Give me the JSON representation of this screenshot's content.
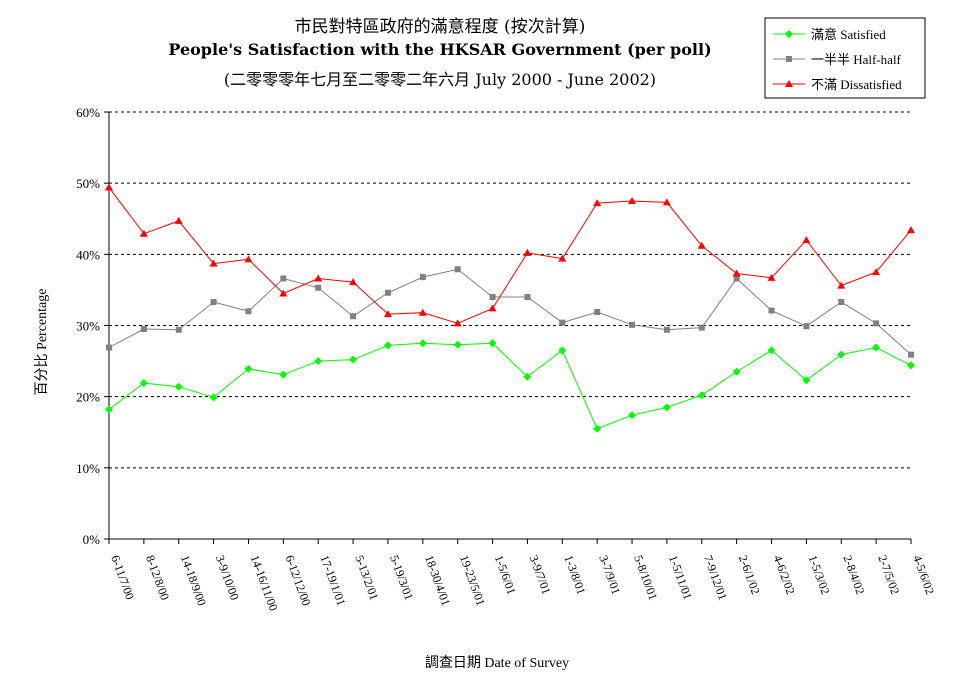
{
  "chart_data": {
    "type": "line",
    "title": "市民對特區政府的滿意程度 (按次計算)",
    "subtitle": "People's Satisfaction with the HKSAR Government (per poll)",
    "subtitle2": "(二零零零年七月至二零零二年六月 July 2000 - June 2002)",
    "xlabel": "調查日期 Date of Survey",
    "ylabel": "百分比 Percentage",
    "ylim": [
      0,
      60
    ],
    "yticks": [
      0,
      10,
      20,
      30,
      40,
      50,
      60
    ],
    "ytick_labels": [
      "0%",
      "10%",
      "20%",
      "30%",
      "40%",
      "50%",
      "60%"
    ],
    "grid": true,
    "legend_position": "top-right",
    "categories": [
      "6-11/7/00",
      "8-12/8/00",
      "14-18/9/00",
      "3-9/10/00",
      "14-16/11/00",
      "6-12/12/00",
      "17-19/1/01",
      "5-13/2/01",
      "5-19/3/01",
      "18-30/4/01",
      "19-23/5/01",
      "1-5/6/01",
      "3-9/7/01",
      "1-3/8/01",
      "3-7/9/01",
      "5-8/10/01",
      "1-5/11/01",
      "7-9/12/01",
      "2-6/1/02",
      "4-6/2/02",
      "1-5/3/02",
      "2-8/4/02",
      "2-7/5/02",
      "4-5/6/02"
    ],
    "series": [
      {
        "name": "滿意 Satisfied",
        "color": "#00ff00",
        "marker": "diamond",
        "values": [
          18.2,
          21.9,
          21.4,
          19.9,
          23.9,
          23.1,
          25.0,
          25.2,
          27.2,
          27.5,
          27.3,
          27.5,
          22.8,
          26.5,
          15.5,
          17.4,
          18.5,
          20.2,
          23.5,
          26.5,
          22.3,
          25.9,
          26.9,
          24.4
        ]
      },
      {
        "name": "一半半 Half-half",
        "color": "#808080",
        "marker": "square",
        "values": [
          26.9,
          29.5,
          29.4,
          33.3,
          32.0,
          36.6,
          35.3,
          31.3,
          34.6,
          36.8,
          37.9,
          34.0,
          34.0,
          30.4,
          31.9,
          30.1,
          29.4,
          29.7,
          36.6,
          32.1,
          29.9,
          33.3,
          30.3,
          25.9
        ]
      },
      {
        "name": "不滿 Dissatisfied",
        "color": "#ff0000",
        "marker": "triangle",
        "values": [
          49.4,
          42.9,
          44.7,
          38.7,
          39.3,
          34.5,
          36.6,
          36.1,
          31.6,
          31.8,
          30.3,
          32.4,
          40.2,
          39.4,
          47.2,
          47.5,
          47.3,
          41.2,
          37.3,
          36.7,
          42.0,
          35.6,
          37.5,
          43.4
        ]
      }
    ]
  }
}
